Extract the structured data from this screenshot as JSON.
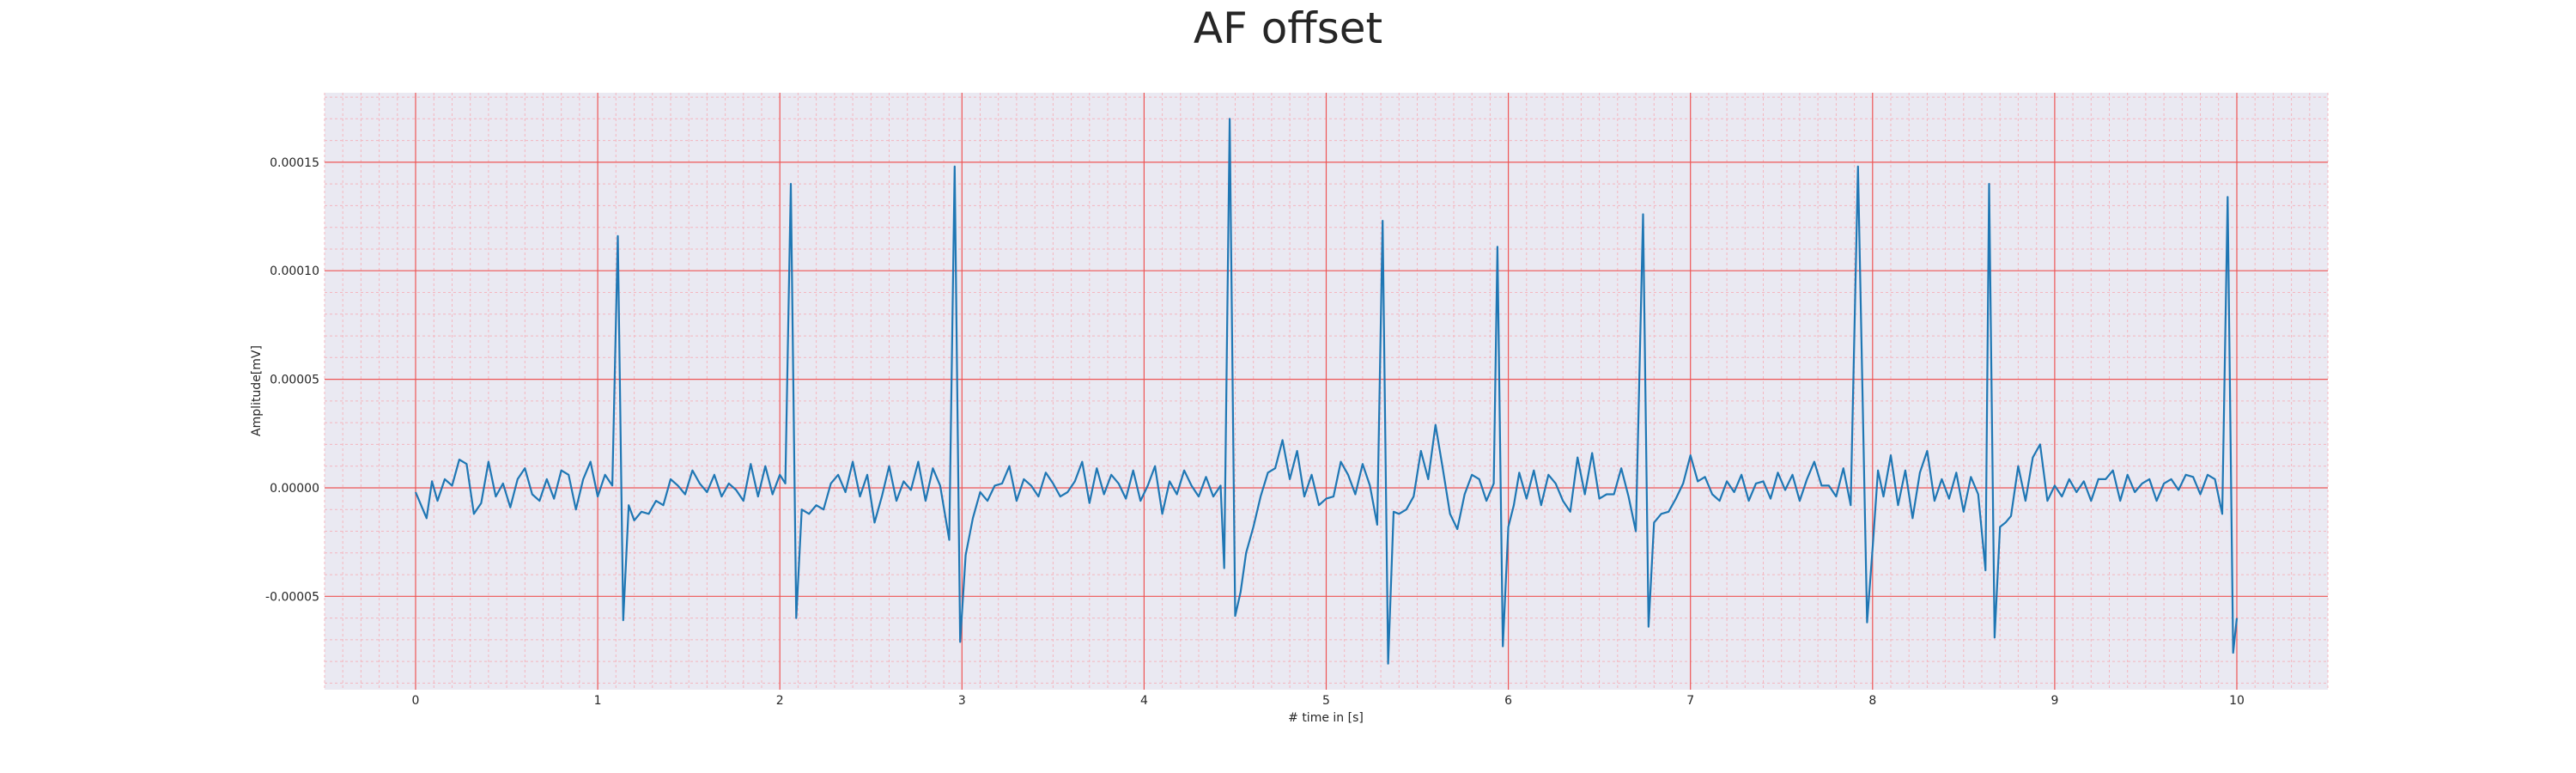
{
  "chart_data": {
    "type": "line",
    "title": "AF offset",
    "xlabel": "# time in [s]",
    "ylabel": "Amplitude[mV]",
    "xlim": [
      -0.5,
      10.5
    ],
    "ylim": [
      -9.3e-05,
      0.000182
    ],
    "xticks": [
      0,
      1,
      2,
      3,
      4,
      5,
      6,
      7,
      8,
      9,
      10
    ],
    "xtick_labels": [
      "0",
      "1",
      "2",
      "3",
      "4",
      "5",
      "6",
      "7",
      "8",
      "9",
      "10"
    ],
    "yticks": [
      -5e-05,
      0.0,
      5e-05,
      0.0001,
      0.00015
    ],
    "ytick_labels": [
      "-0.00005",
      "0.00000",
      "0.00005",
      "0.00010",
      "0.00015"
    ],
    "grid": true,
    "background_color": "#eae9f2",
    "major_grid_color": "#ee5555",
    "minor_grid_color": "#f4b6bf",
    "series": [
      {
        "color": "#1f77b4",
        "beats": [
          {
            "t": 1.11,
            "r": 0.000116,
            "s": -6.1e-05
          },
          {
            "t": 2.06,
            "r": 0.00014,
            "s": -6e-05
          },
          {
            "t": 2.96,
            "r": 0.000148,
            "s": -7.1e-05
          },
          {
            "t": 4.47,
            "r": 0.00017,
            "s": -5.9e-05
          },
          {
            "t": 5.31,
            "r": 0.000123,
            "s": -8.1e-05
          },
          {
            "t": 5.97,
            "r": 0.000111,
            "s": -7.3e-05
          },
          {
            "t": 6.74,
            "r": 0.000126,
            "s": -6.4e-05
          },
          {
            "t": 7.97,
            "r": 0.000148,
            "s": -6.2e-05
          },
          {
            "t": 8.67,
            "r": 0.00014,
            "s": -6.9e-05
          },
          {
            "t": 9.98,
            "r": 0.000134,
            "s": -7.6e-05
          }
        ],
        "x": [
          0.0,
          0.03,
          0.06,
          0.09,
          0.12,
          0.16,
          0.2,
          0.24,
          0.28,
          0.32,
          0.36,
          0.4,
          0.44,
          0.48,
          0.52,
          0.56,
          0.6,
          0.64,
          0.68,
          0.72,
          0.76,
          0.8,
          0.84,
          0.88,
          0.92,
          0.96,
          1.0,
          1.04,
          1.08,
          1.11,
          1.14,
          1.17,
          1.2,
          1.24,
          1.28,
          1.32,
          1.36,
          1.4,
          1.44,
          1.48,
          1.52,
          1.56,
          1.6,
          1.64,
          1.68,
          1.72,
          1.76,
          1.8,
          1.84,
          1.88,
          1.92,
          1.96,
          2.0,
          2.03,
          2.06,
          2.09,
          2.12,
          2.16,
          2.2,
          2.24,
          2.28,
          2.32,
          2.36,
          2.4,
          2.44,
          2.48,
          2.52,
          2.56,
          2.6,
          2.64,
          2.68,
          2.72,
          2.76,
          2.8,
          2.84,
          2.88,
          2.93,
          2.96,
          2.99,
          3.02,
          3.06,
          3.1,
          3.14,
          3.18,
          3.22,
          3.26,
          3.3,
          3.34,
          3.38,
          3.42,
          3.46,
          3.5,
          3.54,
          3.58,
          3.62,
          3.66,
          3.7,
          3.74,
          3.78,
          3.82,
          3.86,
          3.9,
          3.94,
          3.98,
          4.02,
          4.06,
          4.1,
          4.14,
          4.18,
          4.22,
          4.26,
          4.3,
          4.34,
          4.38,
          4.42,
          4.44,
          4.47,
          4.5,
          4.53,
          4.56,
          4.6,
          4.64,
          4.68,
          4.72,
          4.76,
          4.8,
          4.84,
          4.88,
          4.92,
          4.96,
          5.0,
          5.04,
          5.08,
          5.12,
          5.16,
          5.2,
          5.24,
          5.28,
          5.31,
          5.34,
          5.37,
          5.4,
          5.44,
          5.48,
          5.52,
          5.56,
          5.6,
          5.64,
          5.68,
          5.72,
          5.76,
          5.8,
          5.84,
          5.88,
          5.92,
          5.94,
          5.97,
          6.0,
          6.03,
          6.06,
          6.1,
          6.14,
          6.18,
          6.22,
          6.26,
          6.3,
          6.34,
          6.38,
          6.42,
          6.46,
          6.5,
          6.54,
          6.58,
          6.62,
          6.66,
          6.7,
          6.74,
          6.77,
          6.8,
          6.84,
          6.88,
          6.92,
          6.96,
          7.0,
          7.04,
          7.08,
          7.12,
          7.16,
          7.2,
          7.24,
          7.28,
          7.32,
          7.36,
          7.4,
          7.44,
          7.48,
          7.52,
          7.56,
          7.6,
          7.64,
          7.68,
          7.72,
          7.76,
          7.8,
          7.84,
          7.88,
          7.92,
          7.97,
          8.0,
          8.03,
          8.06,
          8.1,
          8.14,
          8.18,
          8.22,
          8.26,
          8.3,
          8.34,
          8.38,
          8.42,
          8.46,
          8.5,
          8.54,
          8.58,
          8.62,
          8.64,
          8.67,
          8.7,
          8.73,
          8.76,
          8.8,
          8.84,
          8.88,
          8.92,
          8.96,
          9.0,
          9.04,
          9.08,
          9.12,
          9.16,
          9.2,
          9.24,
          9.28,
          9.32,
          9.36,
          9.4,
          9.44,
          9.48,
          9.52,
          9.56,
          9.6,
          9.64,
          9.68,
          9.72,
          9.76,
          9.8,
          9.84,
          9.88,
          9.92,
          9.95,
          9.98,
          10.0
        ],
        "y": [
          -2e-06,
          -8e-06,
          -1.4e-05,
          3e-06,
          -6e-06,
          4e-06,
          1e-06,
          1.3e-05,
          1.1e-05,
          -1.2e-05,
          -7e-06,
          1.2e-05,
          -4e-06,
          2e-06,
          -9e-06,
          4e-06,
          9e-06,
          -3e-06,
          -6e-06,
          4e-06,
          -5e-06,
          8e-06,
          6e-06,
          -1e-05,
          4e-06,
          1.2e-05,
          -4e-06,
          6e-06,
          1e-06,
          0.000116,
          -6.1e-05,
          -8e-06,
          -1.5e-05,
          -1.1e-05,
          -1.2e-05,
          -6e-06,
          -8e-06,
          4e-06,
          1e-06,
          -3e-06,
          8e-06,
          2e-06,
          -2e-06,
          6e-06,
          -4e-06,
          2e-06,
          -1e-06,
          -6e-06,
          1.1e-05,
          -4e-06,
          1e-05,
          -3e-06,
          6e-06,
          2e-06,
          0.00014,
          -6e-05,
          -1e-05,
          -1.2e-05,
          -8e-06,
          -1e-05,
          2e-06,
          6e-06,
          -2e-06,
          1.2e-05,
          -4e-06,
          6e-06,
          -1.6e-05,
          -4e-06,
          1e-05,
          -6e-06,
          3e-06,
          -1e-06,
          1.2e-05,
          -6e-06,
          9e-06,
          1e-06,
          -2.4e-05,
          0.000148,
          -7.1e-05,
          -3.1e-05,
          -1.4e-05,
          -2e-06,
          -6e-06,
          1e-06,
          2e-06,
          1e-05,
          -6e-06,
          4e-06,
          1e-06,
          -4e-06,
          7e-06,
          2e-06,
          -4e-06,
          -2e-06,
          3e-06,
          1.2e-05,
          -7e-06,
          9e-06,
          -3e-06,
          6e-06,
          2e-06,
          -5e-06,
          8e-06,
          -6e-06,
          1e-06,
          1e-05,
          -1.2e-05,
          3e-06,
          -3e-06,
          8e-06,
          1e-06,
          -4e-06,
          5e-06,
          -4e-06,
          1e-06,
          -3.7e-05,
          0.00017,
          -5.9e-05,
          -4.8e-05,
          -3e-05,
          -1.8e-05,
          -4e-06,
          7e-06,
          9e-06,
          2.2e-05,
          4e-06,
          1.7e-05,
          -4e-06,
          6e-06,
          -8e-06,
          -5e-06,
          -4e-06,
          1.2e-05,
          6e-06,
          -3e-06,
          1.1e-05,
          1e-06,
          -1.7e-05,
          0.000123,
          -8.1e-05,
          -1.1e-05,
          -1.2e-05,
          -1e-05,
          -4e-06,
          1.7e-05,
          4e-06,
          2.9e-05,
          9e-06,
          -1.2e-05,
          -1.9e-05,
          -3e-06,
          6e-06,
          4e-06,
          -6e-06,
          2e-06,
          0.000111,
          -7.3e-05,
          -1.8e-05,
          -8e-06,
          7e-06,
          -5e-06,
          8e-06,
          -8e-06,
          6e-06,
          2e-06,
          -6e-06,
          -1.1e-05,
          1.4e-05,
          -3e-06,
          1.6e-05,
          -5e-06,
          -3e-06,
          -3e-06,
          9e-06,
          -4e-06,
          -2e-05,
          0.000126,
          -6.4e-05,
          -1.6e-05,
          -1.2e-05,
          -1.1e-05,
          -5e-06,
          2e-06,
          1.5e-05,
          3e-06,
          5e-06,
          -3e-06,
          -6e-06,
          3e-06,
          -2e-06,
          6e-06,
          -6e-06,
          2e-06,
          3e-06,
          -5e-06,
          7e-06,
          -1e-06,
          6e-06,
          -6e-06,
          4e-06,
          1.2e-05,
          1e-06,
          1e-06,
          -4e-06,
          9e-06,
          -8e-06,
          0.000148,
          -6.2e-05,
          -2.8e-05,
          8e-06,
          -4e-06,
          1.5e-05,
          -8e-06,
          8e-06,
          -1.4e-05,
          7e-06,
          1.7e-05,
          -6e-06,
          4e-06,
          -5e-06,
          7e-06,
          -1.1e-05,
          5e-06,
          -3e-06,
          -3.8e-05,
          0.00014,
          -6.9e-05,
          -1.8e-05,
          -1.6e-05,
          -1.3e-05,
          1e-05,
          -6e-06,
          1.4e-05,
          2e-05,
          -6e-06,
          1e-06,
          -4e-06,
          4e-06,
          -2e-06,
          3e-06,
          -6e-06,
          4e-06,
          4e-06,
          8e-06,
          -6e-06,
          6e-06,
          -2e-06,
          2e-06,
          4e-06,
          -6e-06,
          2e-06,
          4e-06,
          -1e-06,
          6e-06,
          5e-06,
          -3e-06,
          6e-06,
          4e-06,
          -1.2e-05,
          0.000134,
          -7.6e-05,
          -6e-05
        ]
      }
    ]
  }
}
